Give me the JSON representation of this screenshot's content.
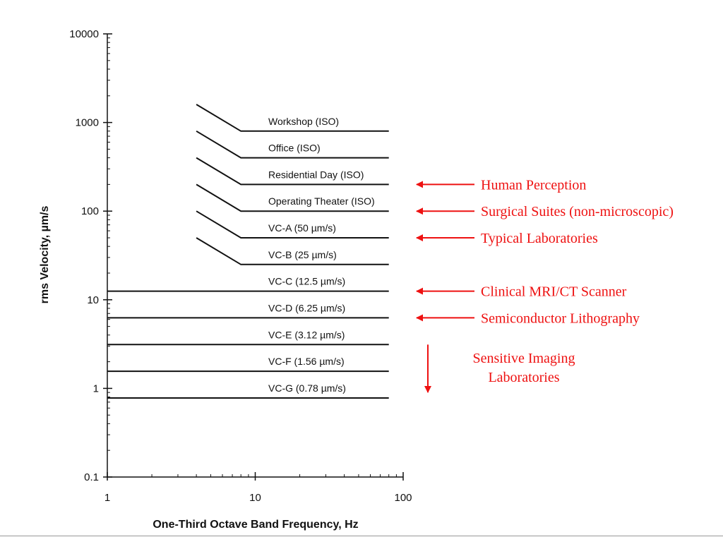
{
  "chart_data": {
    "type": "line",
    "xlabel": "One-Third Octave Band Frequency, Hz",
    "ylabel": "rms Velocity, µm/s",
    "x_scale": "log",
    "y_scale": "log",
    "xlim": [
      1,
      100
    ],
    "ylim": [
      0.1,
      10000
    ],
    "x_ticks": [
      {
        "value": 1,
        "label": "1"
      },
      {
        "value": 10,
        "label": "10"
      },
      {
        "value": 100,
        "label": "100"
      }
    ],
    "y_ticks": [
      {
        "value": 0.1,
        "label": "0.1"
      },
      {
        "value": 1,
        "label": "1"
      },
      {
        "value": 10,
        "label": "10"
      },
      {
        "value": 100,
        "label": "100"
      },
      {
        "value": 1000,
        "label": "1000"
      },
      {
        "value": 10000,
        "label": "10000"
      }
    ],
    "grid": false,
    "line_color": "#111111",
    "annotation_color": "#ee1111",
    "series": [
      {
        "name": "Workshop (ISO)",
        "points": [
          [
            4,
            1600
          ],
          [
            8,
            800
          ],
          [
            80,
            800
          ]
        ]
      },
      {
        "name": "Office (ISO)",
        "points": [
          [
            4,
            800
          ],
          [
            8,
            400
          ],
          [
            80,
            400
          ]
        ]
      },
      {
        "name": "Residential Day (ISO)",
        "points": [
          [
            4,
            400
          ],
          [
            8,
            200
          ],
          [
            80,
            200
          ]
        ]
      },
      {
        "name": "Operating Theater (ISO)",
        "points": [
          [
            4,
            200
          ],
          [
            8,
            100
          ],
          [
            80,
            100
          ]
        ]
      },
      {
        "name": "VC-A (50 µm/s)",
        "points": [
          [
            4,
            100
          ],
          [
            8,
            50
          ],
          [
            80,
            50
          ]
        ]
      },
      {
        "name": "VC-B (25 µm/s)",
        "points": [
          [
            4,
            50
          ],
          [
            8,
            25
          ],
          [
            80,
            25
          ]
        ]
      },
      {
        "name": "VC-C (12.5 µm/s)",
        "points": [
          [
            1,
            12.5
          ],
          [
            80,
            12.5
          ]
        ]
      },
      {
        "name": "VC-D (6.25 µm/s)",
        "points": [
          [
            1,
            6.25
          ],
          [
            80,
            6.25
          ]
        ]
      },
      {
        "name": "VC-E (3.12 µm/s)",
        "points": [
          [
            1,
            3.12
          ],
          [
            80,
            3.12
          ]
        ]
      },
      {
        "name": "VC-F (1.56 µm/s)",
        "points": [
          [
            1,
            1.56
          ],
          [
            80,
            1.56
          ]
        ]
      },
      {
        "name": "VC-G (0.78 µm/s)",
        "points": [
          [
            1,
            0.78
          ],
          [
            80,
            0.78
          ]
        ]
      }
    ],
    "annotations": [
      {
        "text": [
          "Human Perception"
        ],
        "arrow": "left",
        "target_series": "Residential Day (ISO)"
      },
      {
        "text": [
          "Surgical Suites (non-microscopic)"
        ],
        "arrow": "left",
        "target_series": "Operating Theater (ISO)"
      },
      {
        "text": [
          "Typical Laboratories"
        ],
        "arrow": "left",
        "target_series": "VC-A (50 µm/s)"
      },
      {
        "text": [
          "Clinical MRI/CT Scanner"
        ],
        "arrow": "left",
        "target_series": "VC-C (12.5 µm/s)"
      },
      {
        "text": [
          "Semiconductor Lithography"
        ],
        "arrow": "left",
        "target_series": "VC-D (6.25 µm/s)"
      },
      {
        "text": [
          "Sensitive Imaging",
          "Laboratories"
        ],
        "arrow": "down",
        "target_series": "VC-E (3.12 µm/s)"
      }
    ]
  }
}
